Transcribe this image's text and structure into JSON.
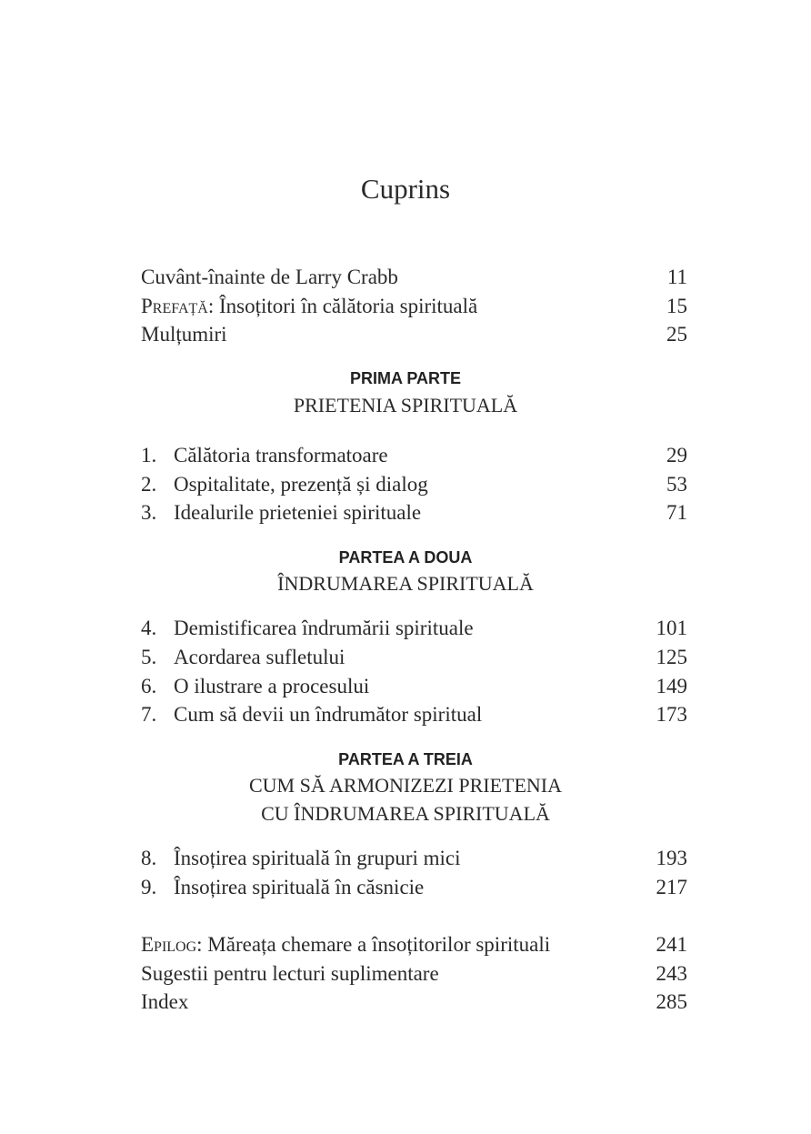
{
  "title": "Cuprins",
  "front": [
    {
      "prefix": "",
      "label": "Cuvânt-înainte de Larry Crabb",
      "page": "11"
    },
    {
      "prefix": "Prefață",
      "label": ": Însoțitori în călătoria spirituală",
      "page": "15"
    },
    {
      "prefix": "",
      "label": "Mulțumiri",
      "page": "25"
    }
  ],
  "parts": [
    {
      "heading": "PRIMA PARTE",
      "subtitle": [
        "PRIETENIA SPIRITUALĂ"
      ],
      "chapters": [
        {
          "num": "1.",
          "label": "Călătoria transformatoare",
          "page": "29"
        },
        {
          "num": "2.",
          "label": "Ospitalitate, prezență și dialog",
          "page": "53"
        },
        {
          "num": "3.",
          "label": "Idealurile prieteniei spirituale",
          "page": "71"
        }
      ]
    },
    {
      "heading": "PARTEA A DOUA",
      "subtitle": [
        "ÎNDRUMAREA SPIRITUALĂ"
      ],
      "chapters": [
        {
          "num": "4.",
          "label": "Demistificarea îndrumării spirituale",
          "page": "101"
        },
        {
          "num": "5.",
          "label": "Acordarea sufletului",
          "page": "125"
        },
        {
          "num": "6.",
          "label": "O ilustrare a procesului",
          "page": "149"
        },
        {
          "num": "7.",
          "label": "Cum să devii un îndrumător spiritual",
          "page": "173"
        }
      ]
    },
    {
      "heading": "PARTEA A TREIA",
      "subtitle": [
        "CUM SĂ ARMONIZEZI PRIETENIA",
        "CU ÎNDRUMAREA SPIRITUALĂ"
      ],
      "chapters": [
        {
          "num": "8.",
          "label": "Însoțirea spirituală în grupuri mici",
          "page": "193"
        },
        {
          "num": "9.",
          "label": "Însoțirea spirituală în căsnicie",
          "page": "217"
        }
      ]
    }
  ],
  "back": [
    {
      "prefix": "Epilog",
      "label": ": Măreața chemare a însoțitorilor spirituali",
      "page": "241"
    },
    {
      "prefix": "",
      "label": "Sugestii pentru lecturi suplimentare",
      "page": "243"
    },
    {
      "prefix": "",
      "label": "Index",
      "page": "285"
    }
  ]
}
